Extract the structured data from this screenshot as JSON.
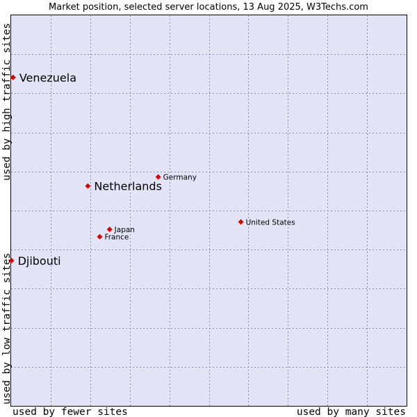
{
  "chart_data": {
    "type": "scatter",
    "title": "Market position, selected server locations, 13 Aug 2025, W3Techs.com",
    "xlabel_low": "used by fewer sites",
    "xlabel_high": "used by many sites",
    "ylabel_low": "used by low traffic sites",
    "ylabel_high": "used by high traffic sites",
    "xlim": [
      0,
      100
    ],
    "ylim": [
      0,
      100
    ],
    "grid": true,
    "colors": {
      "plot_bg": "#e4e4f8",
      "marker": "#e00000",
      "border": "#000000"
    },
    "points": [
      {
        "name": "Venezuela",
        "x": 0.5,
        "y": 84.1,
        "emphasis": true
      },
      {
        "name": "Netherlands",
        "x": 19.4,
        "y": 56.3,
        "emphasis": true
      },
      {
        "name": "Djibouti",
        "x": 0.1,
        "y": 37.2,
        "emphasis": true
      },
      {
        "name": "Germany",
        "x": 37.2,
        "y": 58.6,
        "emphasis": false
      },
      {
        "name": "United States",
        "x": 58.1,
        "y": 47.1,
        "emphasis": false
      },
      {
        "name": "Japan",
        "x": 24.9,
        "y": 45.2,
        "emphasis": false
      },
      {
        "name": "France",
        "x": 22.4,
        "y": 43.3,
        "emphasis": false
      }
    ]
  }
}
